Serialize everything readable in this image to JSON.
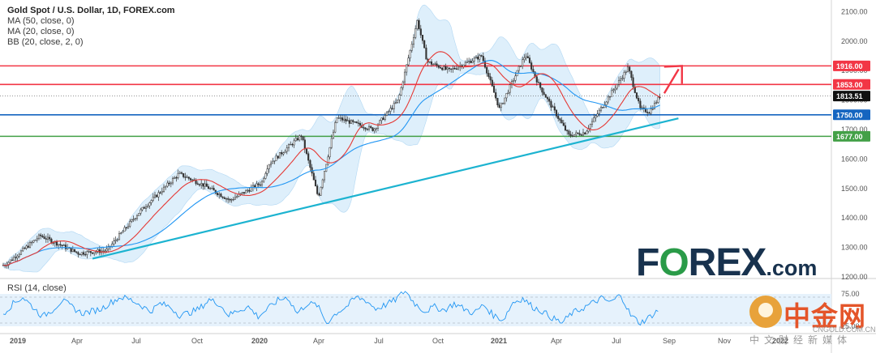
{
  "legend": {
    "title": "Gold Spot / U.S. Dollar, 1D, FOREX.com",
    "ma50": "MA (50, close, 0)",
    "ma20": "MA (20, close, 0)",
    "bb": "BB (20, close, 2, 0)"
  },
  "rsi_label": "RSI (14, close)",
  "logo": {
    "part1": "F",
    "part2": "O",
    "part3": "REX",
    "part4": ".com"
  },
  "watermark": {
    "name": "中金网",
    "url": "CNGOLD.COM.CN",
    "sub": "中文财经新媒体"
  },
  "colors": {
    "candle": "#333333",
    "ma20": "#e53935",
    "ma50": "#2196f3",
    "bb_fill": "#dbeefb",
    "line_1916": "#f23645",
    "line_1853": "#f23645",
    "line_1750": "#1565c0",
    "line_1677": "#43a047",
    "trendline": "#1cb3d0",
    "arrow": "#f23645",
    "rsi": "#2196f3",
    "price_tag": "#111111"
  },
  "chart_data": {
    "type": "line",
    "title": "Gold Spot / U.S. Dollar, 1D, FOREX.com",
    "price_axis": {
      "ylim": [
        1200,
        2100
      ],
      "ticks": [
        "2100.00",
        "2000.00",
        "1900.00",
        "1800.00",
        "1700.00",
        "1600.00",
        "1500.00",
        "1400.00",
        "1300.00",
        "1200.00"
      ]
    },
    "time_axis": [
      "2019",
      "Apr",
      "Jul",
      "Oct",
      "2020",
      "Apr",
      "Jul",
      "Oct",
      "2021",
      "Apr",
      "Jul",
      "Sep",
      "Nov",
      "2022"
    ],
    "current_price": "1813.51",
    "levels": [
      {
        "label": "1916.00",
        "value": 1916,
        "color": "#f23645"
      },
      {
        "label": "1853.00",
        "value": 1853,
        "color": "#f23645"
      },
      {
        "label": "1750.00",
        "value": 1750,
        "color": "#1565c0"
      },
      {
        "label": "1677.00",
        "value": 1677,
        "color": "#43a047"
      }
    ],
    "series": [
      {
        "name": "MA (20, close, 0)",
        "color": "#e53935"
      },
      {
        "name": "MA (50, close, 0)",
        "color": "#2196f3"
      },
      {
        "name": "BB (20, close, 2, 0)",
        "color": "#dbeefb"
      }
    ],
    "price_path": [
      [
        "2019-01-01",
        1240
      ],
      [
        "2019-02-20",
        1340
      ],
      [
        "2019-04-15",
        1280
      ],
      [
        "2019-05-25",
        1290
      ],
      [
        "2019-07-10",
        1420
      ],
      [
        "2019-09-04",
        1550
      ],
      [
        "2019-10-10",
        1510
      ],
      [
        "2019-11-15",
        1460
      ],
      [
        "2019-12-30",
        1520
      ],
      [
        "2020-01-08",
        1580
      ],
      [
        "2020-02-24",
        1680
      ],
      [
        "2020-03-19",
        1470
      ],
      [
        "2020-04-14",
        1740
      ],
      [
        "2020-06-05",
        1700
      ],
      [
        "2020-07-10",
        1800
      ],
      [
        "2020-08-06",
        2070
      ],
      [
        "2020-08-20",
        1930
      ],
      [
        "2020-09-20",
        1900
      ],
      [
        "2020-11-05",
        1950
      ],
      [
        "2020-11-30",
        1770
      ],
      [
        "2021-01-06",
        1955
      ],
      [
        "2021-01-25",
        1850
      ],
      [
        "2021-03-08",
        1680
      ],
      [
        "2021-03-31",
        1690
      ],
      [
        "2021-05-31",
        1910
      ],
      [
        "2021-06-17",
        1770
      ],
      [
        "2021-06-30",
        1760
      ],
      [
        "2021-07-15",
        1813.51
      ]
    ],
    "trendline": [
      [
        "2019-05-05",
        1262
      ],
      [
        "2021-08-10",
        1738
      ]
    ],
    "projection_arrow": [
      [
        "2021-07-21",
        1823
      ],
      [
        "2021-08-15",
        1916
      ]
    ],
    "rsi": {
      "name": "RSI (14, close)",
      "ticks": [
        "75.00",
        "25.00"
      ],
      "levels": [
        70,
        30
      ],
      "values": [
        45,
        60,
        70,
        55,
        40,
        50,
        65,
        55,
        45,
        48,
        52,
        62,
        70,
        66,
        58,
        48,
        60,
        55,
        42,
        46,
        52,
        66,
        60,
        42,
        50,
        55,
        40,
        52,
        65,
        70,
        45,
        60,
        58,
        30,
        46,
        55,
        70,
        65,
        52,
        58,
        66,
        80,
        60,
        48,
        55,
        50,
        60,
        52,
        45,
        58,
        42,
        35,
        62,
        68,
        55,
        48,
        38,
        30,
        45,
        52,
        60,
        68,
        62,
        74,
        42,
        30,
        40,
        52
      ]
    }
  }
}
